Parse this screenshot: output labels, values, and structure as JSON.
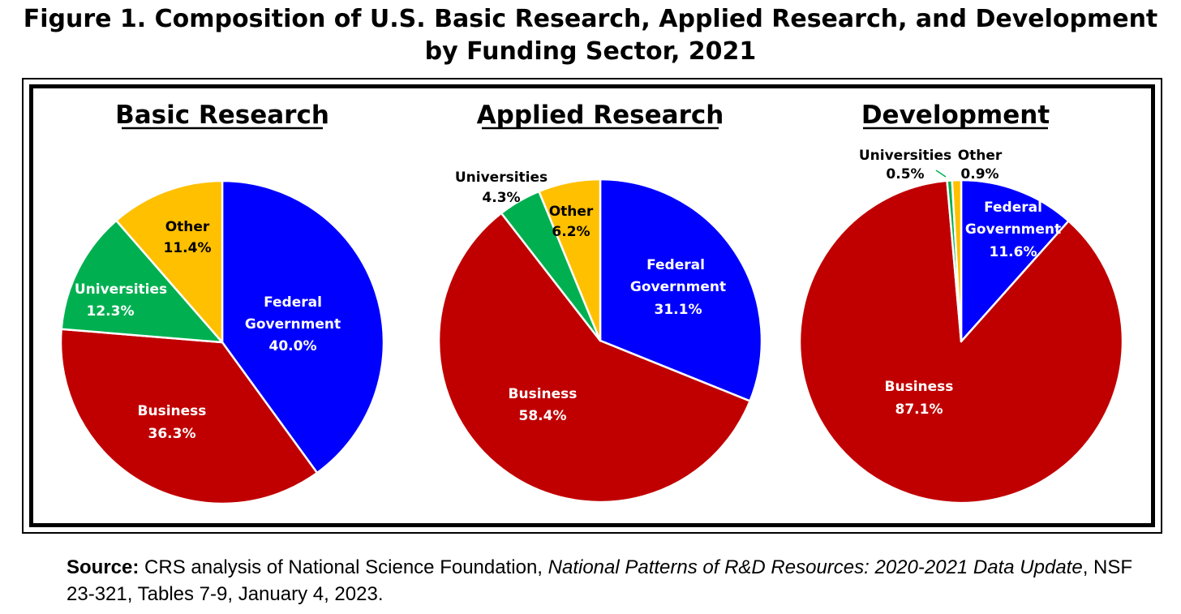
{
  "figure": {
    "title_line1": "Figure 1. Composition of U.S. Basic Research, Applied Research, and Development",
    "title_line2": "by Funding Sector, 2021"
  },
  "source": {
    "label": "Source:",
    "text_before": " CRS analysis of National Science Foundation, ",
    "publication": "National Patterns of R&D Resources: 2020-2021 Data Update",
    "text_after": ", NSF 23-321, Tables 7-9, January 4, 2023."
  },
  "colors": {
    "federal": "#0000ff",
    "business": "#c00000",
    "universities": "#00b050",
    "other": "#ffc000"
  },
  "chart_data": [
    {
      "type": "pie",
      "title": "Basic Research",
      "slices": [
        {
          "name": "Federal Government",
          "value": 40.0,
          "label": "40.0%",
          "color": "#0000ff"
        },
        {
          "name": "Business",
          "value": 36.3,
          "label": "36.3%",
          "color": "#c00000"
        },
        {
          "name": "Universities",
          "value": 12.3,
          "label": "12.3%",
          "color": "#00b050"
        },
        {
          "name": "Other",
          "value": 11.4,
          "label": "11.4%",
          "color": "#ffc000"
        }
      ]
    },
    {
      "type": "pie",
      "title": "Applied Research",
      "slices": [
        {
          "name": "Federal Government",
          "value": 31.1,
          "label": "31.1%",
          "color": "#0000ff"
        },
        {
          "name": "Business",
          "value": 58.4,
          "label": "58.4%",
          "color": "#c00000"
        },
        {
          "name": "Universities",
          "value": 4.3,
          "label": "4.3%",
          "color": "#00b050"
        },
        {
          "name": "Other",
          "value": 6.2,
          "label": "6.2%",
          "color": "#ffc000"
        }
      ]
    },
    {
      "type": "pie",
      "title": "Development",
      "slices": [
        {
          "name": "Federal Government",
          "value": 11.6,
          "label": "11.6%",
          "color": "#0000ff"
        },
        {
          "name": "Business",
          "value": 87.1,
          "label": "87.1%",
          "color": "#c00000"
        },
        {
          "name": "Universities",
          "value": 0.5,
          "label": "0.5%",
          "color": "#00b050"
        },
        {
          "name": "Other",
          "value": 0.9,
          "label": "0.9%",
          "color": "#ffc000"
        }
      ]
    }
  ]
}
